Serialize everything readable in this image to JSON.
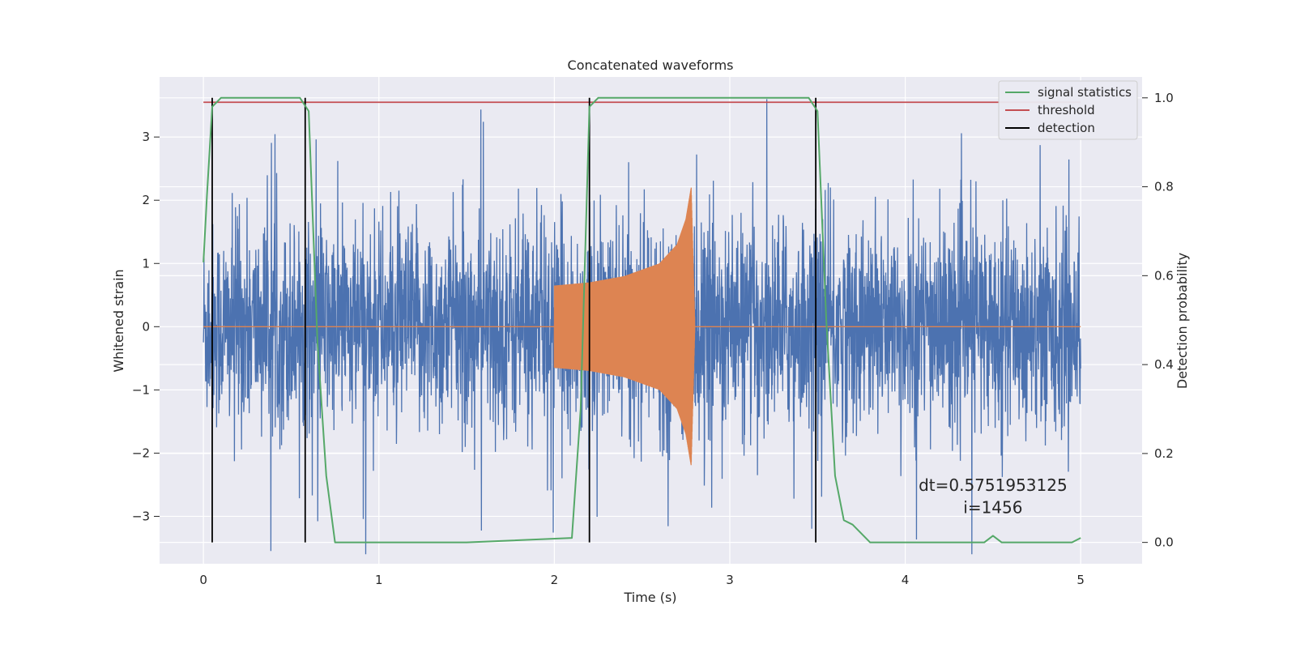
{
  "chart_data": {
    "type": "line",
    "title": "Concatenated waveforms",
    "xlabel": "Time (s)",
    "ylabel": "Whitened strain",
    "y2label": "Detection probability",
    "xlim": [
      -0.25,
      5.35
    ],
    "ylim": [
      -3.75,
      3.95
    ],
    "y2lim": [
      -0.048,
      1.047
    ],
    "xticks": [
      0,
      1,
      2,
      3,
      4,
      5
    ],
    "yticks": [
      -3,
      -2,
      -1,
      0,
      1,
      2,
      3
    ],
    "y2ticks": [
      0.0,
      0.2,
      0.4,
      0.6,
      0.8,
      1.0
    ],
    "xtick_labels": [
      "0",
      "1",
      "2",
      "3",
      "4",
      "5"
    ],
    "ytick_labels": [
      "−3",
      "−2",
      "−1",
      "0",
      "1",
      "2",
      "3"
    ],
    "y2tick_labels": [
      "0.0",
      "0.2",
      "0.4",
      "0.6",
      "0.8",
      "1.0"
    ],
    "grid": true,
    "legend_position": "top-right",
    "legend": [
      {
        "label": "signal statistics",
        "color": "#55a868"
      },
      {
        "label": "threshold",
        "color": "#c44e52"
      },
      {
        "label": "detection",
        "color": "#000000"
      }
    ],
    "strain_noise": {
      "color": "#4c72b0",
      "x_range": [
        0,
        5
      ],
      "typical_amplitude": 0.8,
      "max_abs": 3.6
    },
    "waveform": {
      "color": "#dd8452",
      "x": [
        2.0,
        2.2,
        2.4,
        2.6,
        2.7,
        2.75,
        2.78,
        2.8
      ],
      "envelope": [
        0.65,
        0.7,
        0.8,
        1.0,
        1.3,
        1.7,
        2.2,
        0.1
      ]
    },
    "signal_statistics": {
      "x": [
        0.0,
        0.02,
        0.05,
        0.1,
        0.55,
        0.6,
        0.65,
        0.7,
        0.75,
        1.5,
        2.1,
        2.15,
        2.2,
        2.25,
        3.45,
        3.5,
        3.55,
        3.6,
        3.65,
        3.7,
        3.75,
        3.8,
        3.85,
        4.45,
        4.5,
        4.55,
        4.95,
        5.0
      ],
      "y": [
        0.63,
        0.78,
        0.98,
        1.0,
        1.0,
        0.97,
        0.45,
        0.15,
        0.0,
        0.0,
        0.01,
        0.3,
        0.98,
        1.0,
        1.0,
        0.97,
        0.5,
        0.15,
        0.05,
        0.04,
        0.02,
        0.0,
        0.0,
        0.0,
        0.015,
        0.0,
        0.0,
        0.01
      ]
    },
    "threshold": {
      "value": 0.99,
      "x_range": [
        0,
        5
      ]
    },
    "detections": [
      0.05,
      0.58,
      2.2,
      3.49
    ],
    "annotations": [
      {
        "text": "dt=0.5751953125",
        "x": 4.5,
        "y": -2.6
      },
      {
        "text": " i=1456",
        "x": 4.5,
        "y": -2.95
      }
    ]
  }
}
